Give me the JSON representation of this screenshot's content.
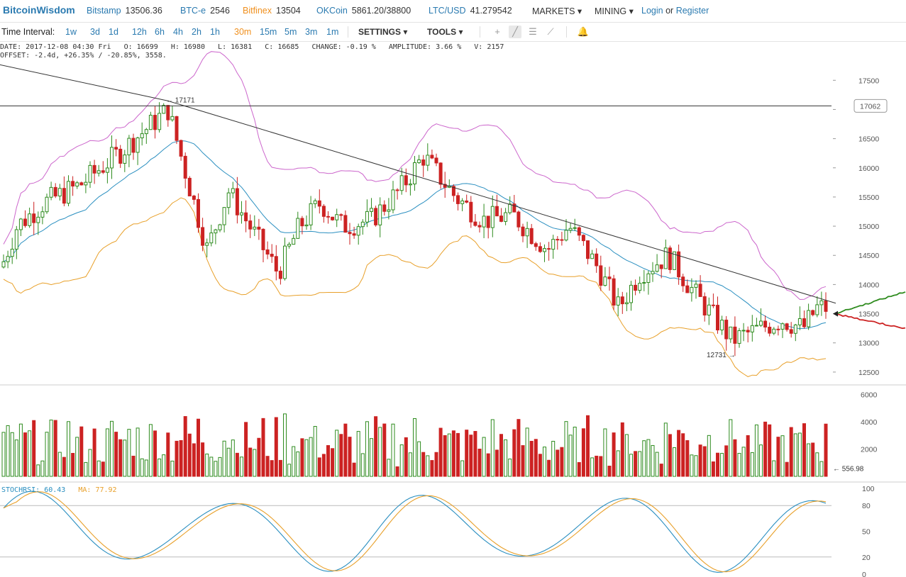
{
  "header": {
    "brand": "BitcoinWisdom",
    "markets": [
      {
        "name": "Bitstamp",
        "price": "13506.36",
        "color": "#2a7ab0"
      },
      {
        "name": "BTC-e",
        "price": "2546",
        "color": "#2a7ab0"
      },
      {
        "name": "Bitfinex",
        "price": "13504",
        "color": "#f0901e"
      },
      {
        "name": "OKCoin",
        "price": "5861.20/38800",
        "color": "#2a7ab0"
      },
      {
        "name": "LTC/USD",
        "price": "41.279542",
        "color": "#2a7ab0"
      }
    ],
    "menu_markets": "MARKETS",
    "menu_mining": "MINING",
    "login": "Login",
    "or": "or",
    "register": "Register"
  },
  "toolbar": {
    "label": "Time Interval:",
    "intervals": [
      "1w",
      "3d",
      "1d",
      "12h",
      "6h",
      "4h",
      "2h",
      "1h",
      "30m",
      "15m",
      "5m",
      "3m",
      "1m"
    ],
    "active_interval": "30m",
    "settings": "SETTINGS",
    "tools": "TOOLS",
    "tool_icons": [
      "crosshair-icon",
      "trendline-icon",
      "horizontal-lines-icon",
      "fan-icon",
      "bell-icon"
    ]
  },
  "info": {
    "line1": "DATE: 2017-12-08 04:30 Fri   O: 16699   H: 16980   L: 16381   C: 16685   CHANGE: -0.19 %   AMPLITUDE: 3.66 %   V: 2157",
    "line2": "OFFSET: -2.4d, +26.35% / -20.85%, 3558."
  },
  "chart_data": [
    {
      "type": "candlestick",
      "yticks": [
        17500,
        17000,
        16500,
        16000,
        15500,
        15000,
        14500,
        14000,
        13500,
        13000,
        12500
      ],
      "ylim": [
        12280,
        17880
      ],
      "high_marker": "17171",
      "low_marker": "12731",
      "price_label": "17062",
      "current_price": 13500,
      "horizontal_line": 17062,
      "trendline": [
        [
          -13,
          17800
        ],
        [
          236,
          17150
        ],
        [
          1178,
          13680
        ]
      ],
      "overlays": [
        "bollinger-upper",
        "bollinger-middle",
        "bollinger-lower"
      ],
      "bids_asks": {
        "bid_color": "#2e8b1e",
        "ask_color": "#cc2222"
      },
      "colors": {
        "up": "#2e8b1e",
        "down": "#cc2222",
        "upper": "#cc66cc",
        "middle": "#2a8fc0",
        "lower": "#e8a02a"
      }
    },
    {
      "type": "bar",
      "name": "volume",
      "yticks": [
        6000,
        4000,
        2000,
        0
      ],
      "ylim": [
        0,
        6600
      ],
      "last_label": "556.98"
    },
    {
      "type": "line",
      "name": "stochrsi",
      "legend": [
        {
          "label": "STOCHRSI: 60.43",
          "color": "#2a8fc0"
        },
        {
          "label": "MA: 77.92",
          "color": "#e8a02a"
        }
      ],
      "yticks": [
        100,
        80,
        50,
        20,
        0
      ],
      "ylim": [
        0,
        100
      ],
      "reference_lines": [
        80,
        20
      ]
    }
  ]
}
